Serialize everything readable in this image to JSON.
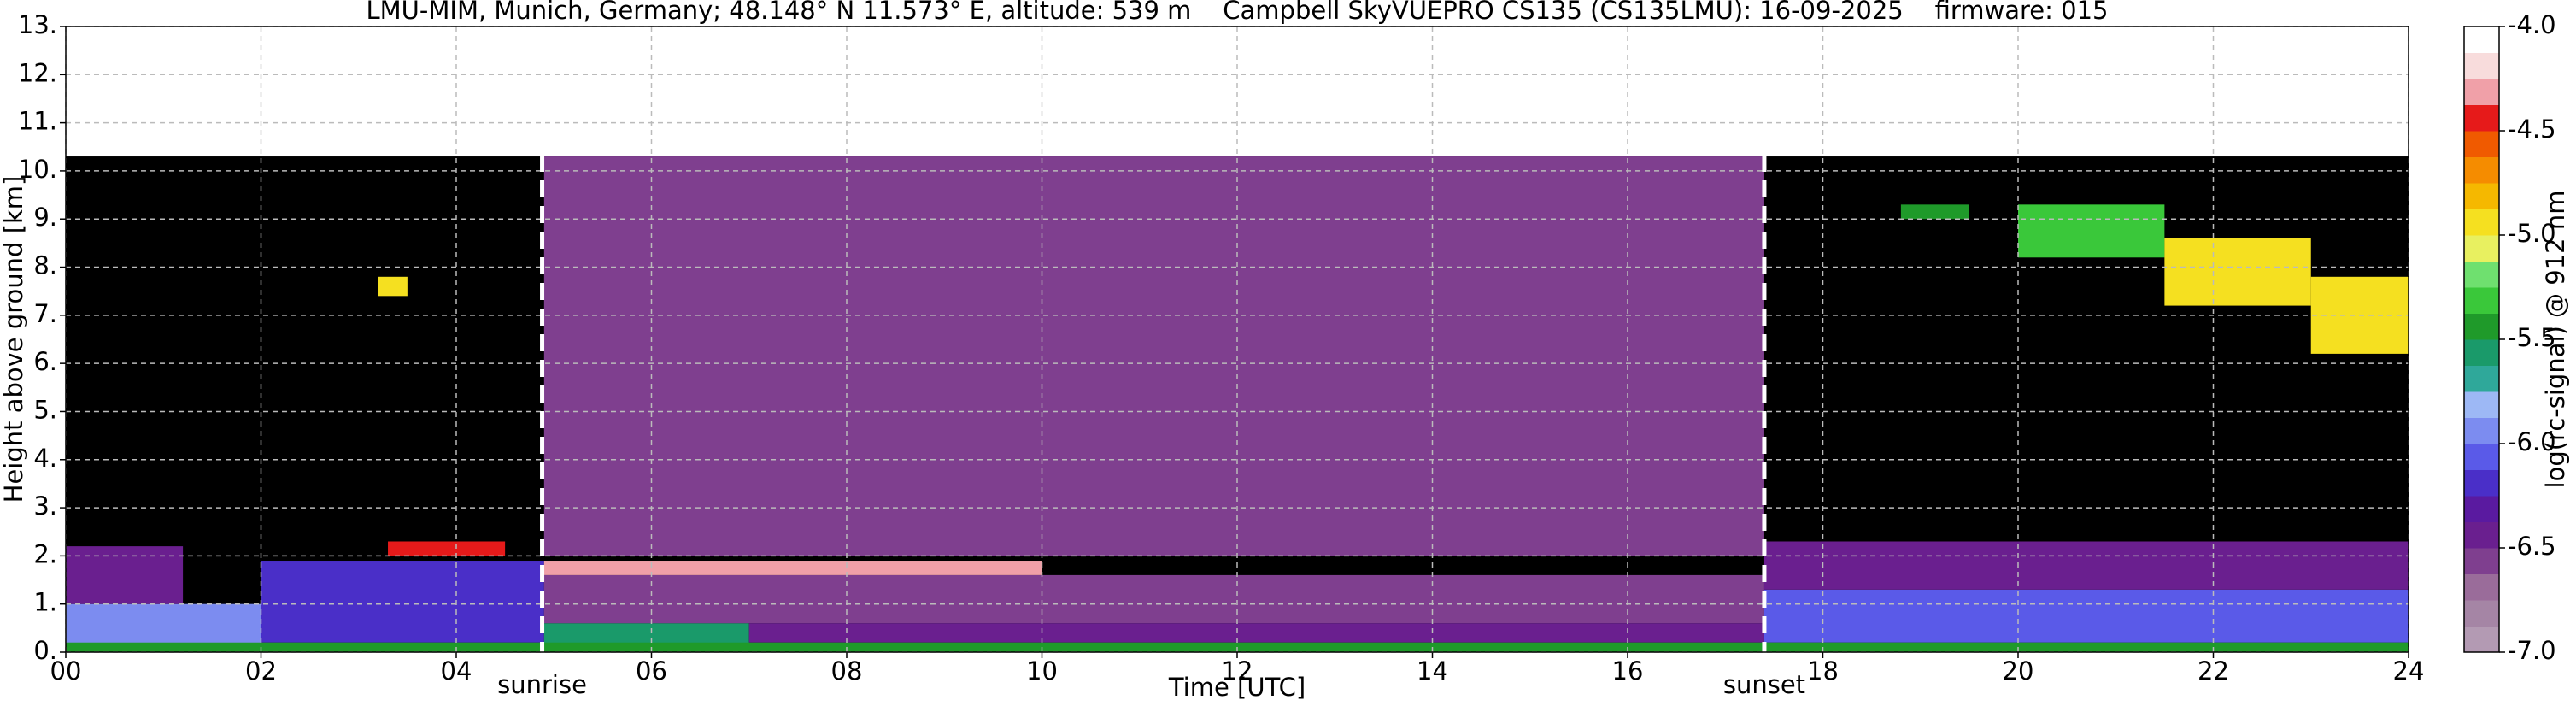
{
  "chart_data": {
    "type": "heatmap",
    "title": "LMU-MIM, Munich, Germany; 48.148° N 11.573° E, altitude: 539 m    Campbell SkyVUEPRO CS135 (CS135LMU): 16-09-2025    firmware: 015",
    "xlabel": "Time [UTC]",
    "ylabel": "Height above ground [km]",
    "colorbar_label": "log(rc-signal) @ 912 nm",
    "xlim": [
      0,
      24
    ],
    "xticks": [
      {
        "value": 0,
        "label": "00"
      },
      {
        "value": 2,
        "label": "02"
      },
      {
        "value": 4,
        "label": "04"
      },
      {
        "value": 6,
        "label": "06"
      },
      {
        "value": 8,
        "label": "08"
      },
      10,
      12,
      14,
      16,
      18,
      20,
      22,
      24
    ],
    "ylim": [
      0,
      13
    ],
    "yticks": [
      {
        "value": 0,
        "label": "0."
      },
      {
        "value": 1,
        "label": "1."
      },
      {
        "value": 2,
        "label": "2."
      },
      {
        "value": 3,
        "label": "3."
      },
      {
        "value": 4,
        "label": "4."
      },
      {
        "value": 5,
        "label": "5."
      },
      {
        "value": 6,
        "label": "6."
      },
      {
        "value": 7,
        "label": "7."
      },
      {
        "value": 8,
        "label": "8."
      },
      {
        "value": 9,
        "label": "9."
      },
      {
        "value": 10,
        "label": "10."
      },
      {
        "value": 11,
        "label": "11."
      },
      {
        "value": 12,
        "label": "12."
      },
      {
        "value": 13,
        "label": "13."
      }
    ],
    "clim": [
      -7,
      -4
    ],
    "cticks": [
      {
        "value": -7,
        "label": "-7.0"
      },
      -6.5,
      {
        "value": -6,
        "label": "-6.0"
      },
      -5.5,
      {
        "value": -5,
        "label": "-5.0"
      },
      -4.5,
      {
        "value": -4,
        "label": "-4.0"
      }
    ],
    "colors": [
      "#b39ab3",
      "#a585a5",
      "#9a6c9a",
      "#7f3f8f",
      "#6a1f8f",
      "#5a1aa0",
      "#4a2fc8",
      "#5a5ae8",
      "#7c8cf0",
      "#9db8f5",
      "#2fa89a",
      "#1a9a6a",
      "#1f9a2a",
      "#3ac83a",
      "#6fe06f",
      "#e8f060",
      "#f5e020",
      "#f5b800",
      "#f58c00",
      "#f05a00",
      "#e61a1a",
      "#f0a0a8",
      "#f8dcdc",
      "#ffffff"
    ],
    "grid": true,
    "regions": [
      {
        "x": [
          0,
          24
        ],
        "y": [
          0,
          10.3
        ],
        "value": null
      },
      {
        "x": [
          4.9,
          17.4
        ],
        "y": [
          2,
          10.3
        ],
        "value": -6.6
      },
      {
        "x": [
          0,
          2
        ],
        "y": [
          0,
          1
        ],
        "value": -6.0
      },
      {
        "x": [
          0,
          1.2
        ],
        "y": [
          1,
          2.2
        ],
        "value": -6.5
      },
      {
        "x": [
          2,
          4.9
        ],
        "y": [
          0.2,
          1.9
        ],
        "value": -6.2
      },
      {
        "x": [
          4.9,
          7
        ],
        "y": [
          0.1,
          0.6
        ],
        "value": -5.6
      },
      {
        "x": [
          4.9,
          17.4
        ],
        "y": [
          0.6,
          1.6
        ],
        "value": -6.6
      },
      {
        "x": [
          7,
          17.4
        ],
        "y": [
          0.2,
          0.6
        ],
        "value": -6.4
      },
      {
        "x": [
          17.4,
          24
        ],
        "y": [
          0.2,
          1.3
        ],
        "value": -6.1
      },
      {
        "x": [
          17.4,
          24
        ],
        "y": [
          1.3,
          2.3
        ],
        "value": -6.5
      },
      {
        "x": [
          0,
          24
        ],
        "y": [
          0,
          0.2
        ],
        "value": -5.5
      },
      {
        "x": [
          4.9,
          10
        ],
        "y": [
          1.6,
          1.9
        ],
        "value": -4.3
      },
      {
        "x": [
          3.3,
          4.5
        ],
        "y": [
          2,
          2.3
        ],
        "value": -4.4
      },
      {
        "x": [
          3.2,
          3.5
        ],
        "y": [
          7.4,
          7.8
        ],
        "value": -5.0
      },
      {
        "x": [
          18.8,
          19.5
        ],
        "y": [
          9,
          9.3
        ],
        "value": -5.5
      },
      {
        "x": [
          20,
          21.5
        ],
        "y": [
          8.2,
          9.3
        ],
        "value": -5.3
      },
      {
        "x": [
          21.5,
          23
        ],
        "y": [
          7.2,
          8.6
        ],
        "value": -5.0
      },
      {
        "x": [
          23,
          24
        ],
        "y": [
          6.2,
          7.8
        ],
        "value": -4.9
      }
    ],
    "markers": [
      {
        "x": 4.88,
        "label": "sunrise"
      },
      {
        "x": 17.4,
        "label": "sunset"
      }
    ]
  }
}
